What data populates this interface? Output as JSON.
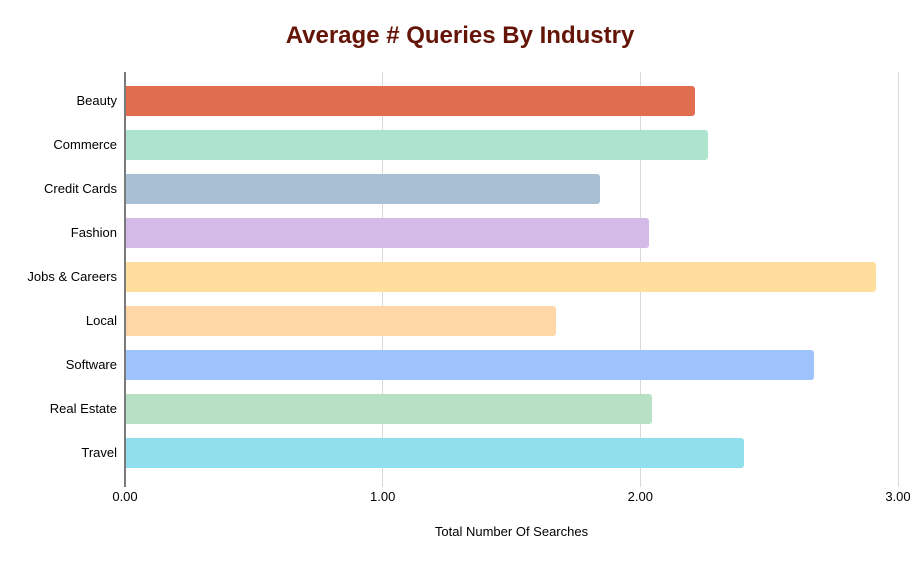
{
  "title": "Average # Queries By Industry",
  "colors": {
    "title": "#651507",
    "gridline": "#d9d9d9",
    "axis_line": "#7a7a7a",
    "text": "#000000",
    "background": "#ffffff"
  },
  "chart_data": {
    "type": "bar",
    "orientation": "horizontal",
    "title": "Average # Queries By Industry",
    "xlabel": "Total Number Of Searches",
    "ylabel": "",
    "xlim": [
      0,
      3
    ],
    "x_ticks": [
      "0.00",
      "1.00",
      "2.00",
      "3.00"
    ],
    "x_tick_values": [
      0,
      1,
      2,
      3
    ],
    "grid": true,
    "legend": "none",
    "categories": [
      "Beauty",
      "Commerce",
      "Credit Cards",
      "Fashion",
      "Jobs & Careers",
      "Local",
      "Software",
      "Real Estate",
      "Travel"
    ],
    "values": [
      2.21,
      2.26,
      1.84,
      2.03,
      2.91,
      1.67,
      2.67,
      2.04,
      2.4
    ],
    "bar_colors": [
      "#E26E50",
      "#ACE4CE",
      "#A9BFD4",
      "#D4BAE7",
      "#FFDE9E",
      "#FFD7A6",
      "#9FC3FC",
      "#B7E0C4",
      "#90DFED"
    ]
  }
}
